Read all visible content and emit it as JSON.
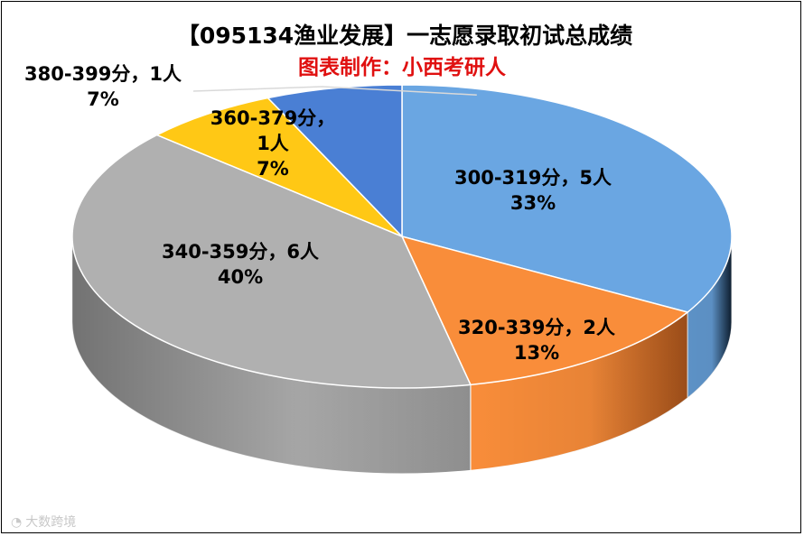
{
  "chart_data": {
    "type": "pie",
    "title": "【095134渔业发展】一志愿录取初试总成绩",
    "subtitle": "图表制作：小西考研人",
    "slices": [
      {
        "label": "300-319分，5人",
        "percent_label": "33%",
        "value": 5,
        "color": "#6aa6e2",
        "side_color": "#0f2236"
      },
      {
        "label": "320-339分，2人",
        "percent_label": "13%",
        "value": 2,
        "color": "#f98d3a",
        "side_color": "#b0571c"
      },
      {
        "label": "340-359分，6人",
        "percent_label": "40%",
        "value": 6,
        "color": "#b0b0b0",
        "side_color": "#8e8e8e"
      },
      {
        "label": "360-379分，1人",
        "percent_label": "7%",
        "value": 1,
        "color": "#ffc815",
        "side_color": "#b88d00"
      },
      {
        "label": "380-399分，1人",
        "percent_label": "7%",
        "value": 1,
        "color": "#4a7fd4",
        "side_color": "#2c4f8e"
      }
    ],
    "style": "3d-pie",
    "title_color": "#000000",
    "subtitle_color": "#e01010"
  },
  "watermark": {
    "icon": "weibo-logo-icon",
    "text": "大数跨境"
  }
}
